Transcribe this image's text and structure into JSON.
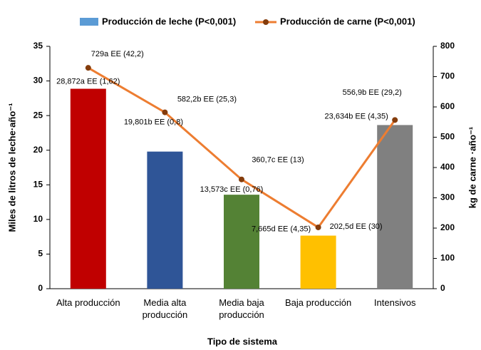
{
  "chart_data": {
    "type": "bar_line",
    "categories": [
      "Alta producción",
      "Media alta producción",
      "Media baja producción",
      "Baja producción",
      "Intensivos"
    ],
    "series": [
      {
        "name": "Producción de leche (P<0,001)",
        "color": "#5b9bd5",
        "bar_colors": [
          "#c00000",
          "#2f5597",
          "#548235",
          "#ffc000",
          "#808080"
        ],
        "values": [
          28.872,
          19.801,
          13.573,
          7.665,
          23.634
        ],
        "value_labels": [
          "28,872a EE (1,62)",
          "19,801b EE (0,8)",
          "13,573c EE (0,76)",
          "7,665d EE (4,35)",
          "23,634b EE (4,35)"
        ]
      },
      {
        "name": "Producción de carne (P<0,001)",
        "color": "#ed7d31",
        "marker_color": "#843c0c",
        "axis": "y2",
        "values": [
          729,
          582.2,
          360.7,
          202.5,
          556.9
        ],
        "value_labels": [
          "729a EE (42,2)",
          "582,2b EE (25,3)",
          "360,7c EE (13)",
          "202,5d EE (30)",
          "556,9b EE (29,2)"
        ]
      }
    ],
    "xlabel": "Tipo de sistema",
    "ylabel": "Miles de litros de leche·año⁻¹",
    "y2label": "kg de carne ·año⁻¹",
    "ylim": [
      0,
      35
    ],
    "yticks": [
      0,
      5,
      10,
      15,
      20,
      25,
      30,
      35
    ],
    "y2lim": [
      0,
      800
    ],
    "y2ticks": [
      0,
      100,
      200,
      300,
      400,
      500,
      600,
      700,
      800
    ],
    "grid": false
  }
}
